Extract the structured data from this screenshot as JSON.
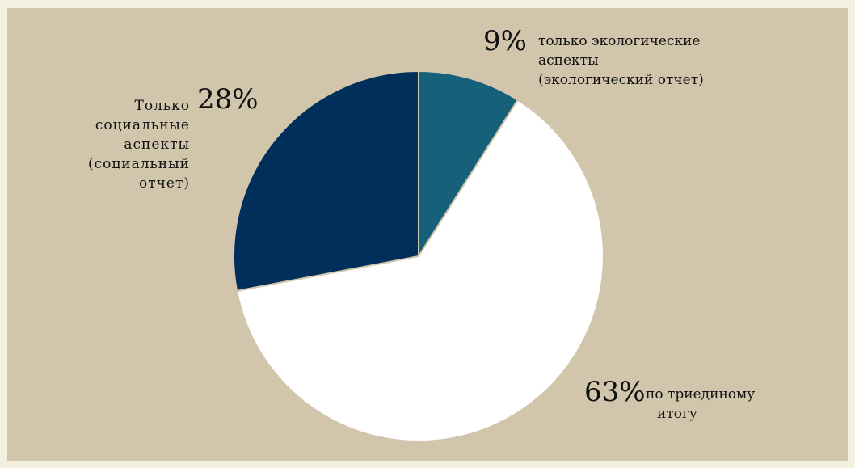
{
  "chart_data": {
    "type": "pie",
    "slices": [
      {
        "pct_label": "9%",
        "value": 9,
        "color": "#17607a",
        "label_lines": [
          "только экологические",
          "аспекты",
          "(экологический отчет)"
        ]
      },
      {
        "pct_label": "63%",
        "value": 63,
        "color": "#ffffff",
        "label_lines": [
          "по триединому",
          "итогу"
        ]
      },
      {
        "pct_label": "28%",
        "value": 28,
        "color": "#002f5c",
        "label_lines": [
          "Только",
          "социальные",
          "аспекты",
          "(социальный",
          "отчет)"
        ]
      }
    ],
    "background": "#d1c6ac",
    "slice_border": "#d1c6ac"
  }
}
